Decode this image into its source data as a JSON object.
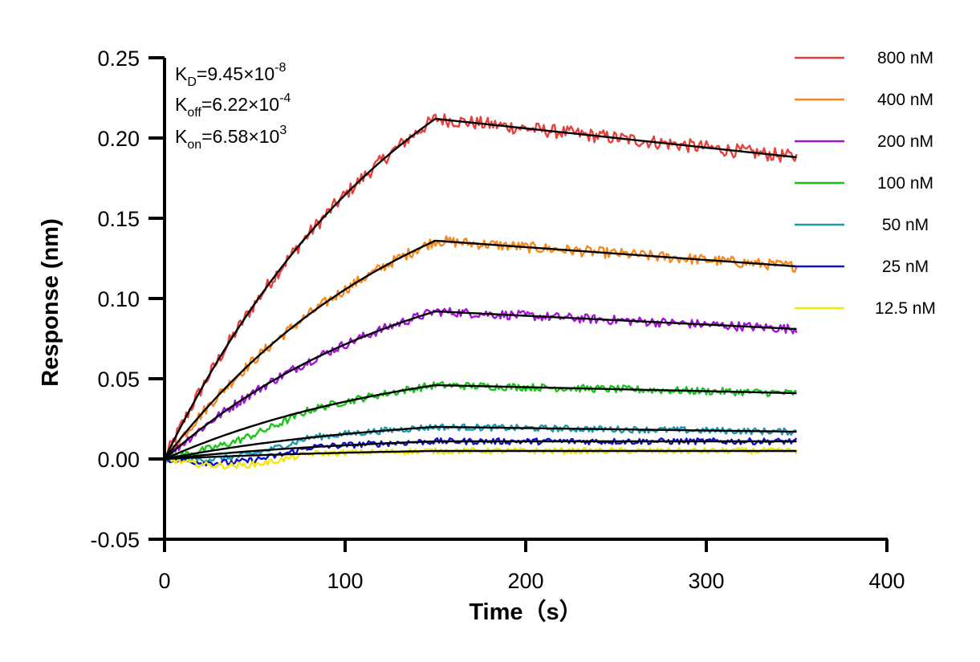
{
  "chart_data": {
    "type": "line",
    "xlabel": "Time（s）",
    "ylabel": "Response (nm)",
    "xlim": [
      0,
      400
    ],
    "ylim": [
      -0.05,
      0.25
    ],
    "x_ticks": [
      "0",
      "100",
      "200",
      "300",
      "400"
    ],
    "y_ticks": [
      "-0.05",
      "0.00",
      "0.05",
      "0.10",
      "0.15",
      "0.20",
      "0.25"
    ],
    "grid": false,
    "legend_position": "top-right",
    "association_end_time": 150,
    "end_time": 350,
    "annotations": {
      "kd": {
        "base": "K",
        "sub": "D",
        "mantissa": "=9.45×10",
        "exp": "-8"
      },
      "koff": {
        "base": "K",
        "sub": "off",
        "mantissa": "=6.22×10",
        "exp": "-4"
      },
      "kon": {
        "base": "K",
        "sub": "on",
        "mantissa": "=6.58×10",
        "exp": "3"
      }
    },
    "series": [
      {
        "name": "800 nM",
        "color": "#E8413B",
        "plateau": 0.212,
        "end": 0.188
      },
      {
        "name": "400 nM",
        "color": "#F7891E",
        "plateau": 0.136,
        "end": 0.12
      },
      {
        "name": "200 nM",
        "color": "#A512D8",
        "plateau": 0.092,
        "end": 0.081
      },
      {
        "name": "100 nM",
        "color": "#1BC41B",
        "plateau": 0.046,
        "end": 0.041
      },
      {
        "name": "50 nM",
        "color": "#1E9AB0",
        "plateau": 0.02,
        "end": 0.017
      },
      {
        "name": "25 nM",
        "color": "#1010D0",
        "plateau": 0.011,
        "end": 0.011
      },
      {
        "name": "12.5 nM",
        "color": "#F2E60C",
        "plateau": 0.005,
        "end": 0.005
      }
    ],
    "fit_color": "#000000"
  }
}
